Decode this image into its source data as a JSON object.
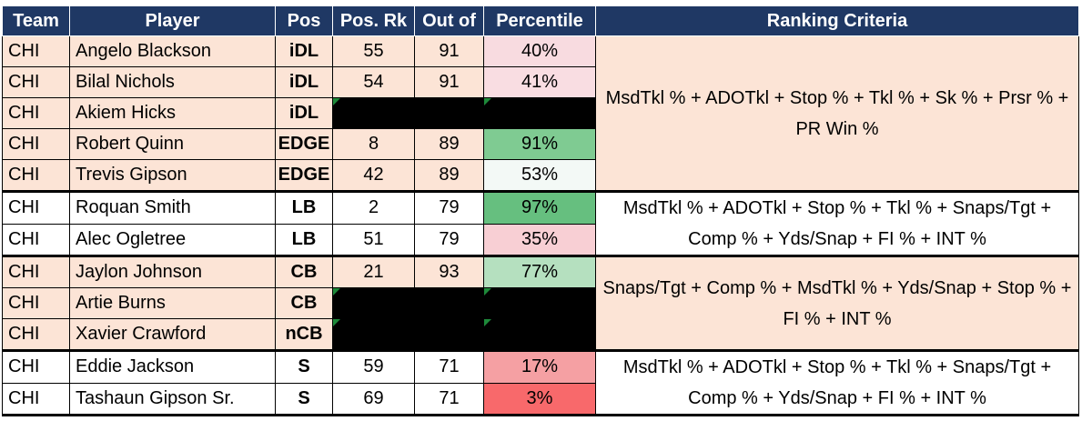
{
  "headers": {
    "team": "Team",
    "player": "Player",
    "pos": "Pos",
    "pos_rk": "Pos. Rk",
    "out_of": "Out of",
    "percentile": "Percentile",
    "criteria": "Ranking Criteria"
  },
  "colors": {
    "header_bg": "#1f3864",
    "salmon_row": "#fce4d6",
    "redacted": "#000000"
  },
  "criteria": {
    "dl_edge": "MsdTkl % + ADOTkl + Stop % + Tkl % + Sk % + Prsr % + PR Win %",
    "lb": "MsdTkl % + ADOTkl + Stop % + Tkl % + Snaps/Tgt + Comp % + Yds/Snap + FI % + INT %",
    "cb": "Snaps/Tgt + Comp % + MsdTkl % + Yds/Snap + Stop % + FI % + INT %",
    "s": "MsdTkl % + ADOTkl + Stop % + Tkl % + Snaps/Tgt + Comp % + Yds/Snap + FI % + INT %"
  },
  "rows": [
    {
      "team": "CHI",
      "player": "Angelo Blackson",
      "pos": "iDL",
      "pos_rk": "55",
      "out_of": "91",
      "percentile": "40%",
      "pct_color": "#f8dbe0"
    },
    {
      "team": "CHI",
      "player": "Bilal Nichols",
      "pos": "iDL",
      "pos_rk": "54",
      "out_of": "91",
      "percentile": "41%",
      "pct_color": "#f9dde2"
    },
    {
      "team": "CHI",
      "player": "Akiem Hicks",
      "pos": "iDL",
      "pos_rk": "",
      "out_of": "",
      "percentile": "",
      "pct_color": ""
    },
    {
      "team": "CHI",
      "player": "Robert Quinn",
      "pos": "EDGE",
      "pos_rk": "8",
      "out_of": "89",
      "percentile": "91%",
      "pct_color": "#7fcb92"
    },
    {
      "team": "CHI",
      "player": "Trevis Gipson",
      "pos": "EDGE",
      "pos_rk": "42",
      "out_of": "89",
      "percentile": "53%",
      "pct_color": "#f3f9f6"
    },
    {
      "team": "CHI",
      "player": "Roquan Smith",
      "pos": "LB",
      "pos_rk": "2",
      "out_of": "79",
      "percentile": "97%",
      "pct_color": "#66bf7f"
    },
    {
      "team": "CHI",
      "player": "Alec Ogletree",
      "pos": "LB",
      "pos_rk": "51",
      "out_of": "79",
      "percentile": "35%",
      "pct_color": "#f8cfd4"
    },
    {
      "team": "CHI",
      "player": "Jaylon Johnson",
      "pos": "CB",
      "pos_rk": "21",
      "out_of": "93",
      "percentile": "77%",
      "pct_color": "#b5e0bf"
    },
    {
      "team": "CHI",
      "player": "Artie Burns",
      "pos": "CB",
      "pos_rk": "",
      "out_of": "",
      "percentile": "",
      "pct_color": ""
    },
    {
      "team": "CHI",
      "player": "Xavier Crawford",
      "pos": "nCB",
      "pos_rk": "",
      "out_of": "",
      "percentile": "",
      "pct_color": ""
    },
    {
      "team": "CHI",
      "player": "Eddie Jackson",
      "pos": "S",
      "pos_rk": "59",
      "out_of": "71",
      "percentile": "17%",
      "pct_color": "#f5a0a3"
    },
    {
      "team": "CHI",
      "player": "Tashaun Gipson Sr.",
      "pos": "S",
      "pos_rk": "69",
      "out_of": "71",
      "percentile": "3%",
      "pct_color": "#f8696b"
    }
  ]
}
